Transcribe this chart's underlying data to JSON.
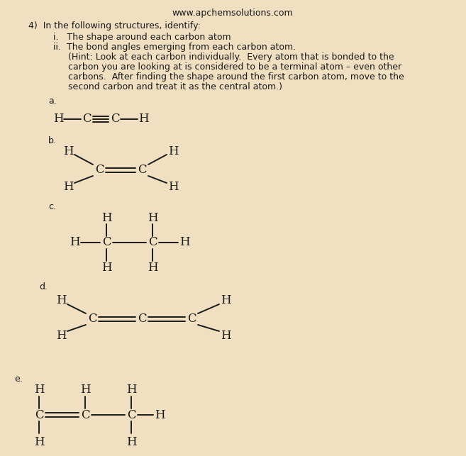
{
  "background_color": "#f0dfc0",
  "title_text": "www.apchemsolutions.com",
  "q_text": "4)  In the following structures, identify:",
  "pt_i": "i.   The shape around each carbon atom",
  "pt_ii": "ii.  The bond angles emerging from each carbon atom.",
  "hint1": "(Hint: Look at each carbon individually.  Every atom that is bonded to the",
  "hint2": "carbon you are looking at is considered to be a terminal atom – even other",
  "hint3": "carbons.  After finding the shape around the first carbon atom, move to the",
  "hint4": "second carbon and treat it as the central atom.)"
}
